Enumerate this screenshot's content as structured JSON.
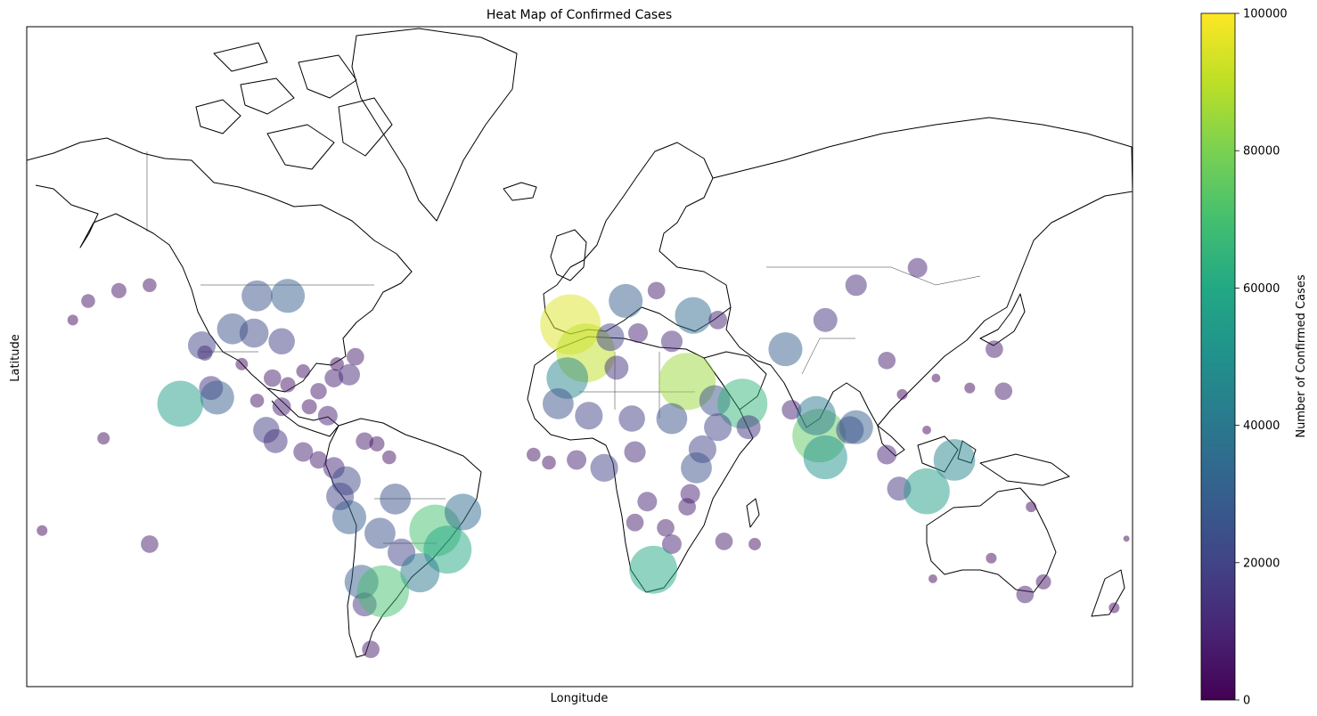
{
  "chart_data": {
    "type": "scatter",
    "title": "Heat Map of Confirmed Cases",
    "xlabel": "Longitude",
    "ylabel": "Latitude",
    "xlim": [
      -180,
      180
    ],
    "ylim": [
      -60,
      85
    ],
    "grid": false,
    "basemap": "coastlines and country borders",
    "marker_alpha": 0.5,
    "colorbar": {
      "label": "Number of Confirmed Cases",
      "colormap": "viridis",
      "range": [
        0,
        100000
      ],
      "ticks": [
        0,
        20000,
        40000,
        60000,
        80000,
        100000
      ],
      "tick_labels": [
        "0",
        "20000",
        "40000",
        "60000",
        "80000",
        "100000"
      ]
    },
    "points": [
      {
        "lon": -100,
        "lat": 40,
        "cases": 8000
      },
      {
        "lon": -95,
        "lat": 38,
        "cases": 6000
      },
      {
        "lon": -90,
        "lat": 42,
        "cases": 5000
      },
      {
        "lon": -85,
        "lat": 36,
        "cases": 7000
      },
      {
        "lon": -80,
        "lat": 40,
        "cases": 9000
      },
      {
        "lon": -75,
        "lat": 41,
        "cases": 12000
      },
      {
        "lon": -110,
        "lat": 44,
        "cases": 4000
      },
      {
        "lon": -120,
        "lat": 37,
        "cases": 15000
      },
      {
        "lon": -118,
        "lat": 34,
        "cases": 30000
      },
      {
        "lon": -122,
        "lat": 47,
        "cases": 6000
      },
      {
        "lon": -105,
        "lat": 33,
        "cases": 5000
      },
      {
        "lon": -97,
        "lat": 31,
        "cases": 9000
      },
      {
        "lon": -88,
        "lat": 31,
        "cases": 6000
      },
      {
        "lon": -82,
        "lat": 28,
        "cases": 10000
      },
      {
        "lon": -79,
        "lat": 44,
        "cases": 5000
      },
      {
        "lon": -73,
        "lat": 46,
        "cases": 8000
      },
      {
        "lon": -113,
        "lat": 53,
        "cases": 25000
      },
      {
        "lon": -106,
        "lat": 52,
        "cases": 22000
      },
      {
        "lon": -97,
        "lat": 50,
        "cases": 18000
      },
      {
        "lon": -123,
        "lat": 49,
        "cases": 20000
      },
      {
        "lon": -105,
        "lat": 60,
        "cases": 25000
      },
      {
        "lon": -95,
        "lat": 60,
        "cases": 30000
      },
      {
        "lon": -130,
        "lat": 32,
        "cases": 55000
      },
      {
        "lon": -140,
        "lat": 62,
        "cases": 5000
      },
      {
        "lon": -150,
        "lat": 61,
        "cases": 6000
      },
      {
        "lon": -160,
        "lat": 59,
        "cases": 5000
      },
      {
        "lon": -165,
        "lat": 55,
        "cases": 3000
      },
      {
        "lon": -155,
        "lat": 20,
        "cases": 4000
      },
      {
        "lon": -102,
        "lat": 23,
        "cases": 18000
      },
      {
        "lon": -99,
        "lat": 19,
        "cases": 15000
      },
      {
        "lon": -90,
        "lat": 15,
        "cases": 10000
      },
      {
        "lon": -85,
        "lat": 12,
        "cases": 8000
      },
      {
        "lon": -80,
        "lat": 9,
        "cases": 12000
      },
      {
        "lon": -76,
        "lat": 4,
        "cases": 22000
      },
      {
        "lon": -70,
        "lat": 19,
        "cases": 8000
      },
      {
        "lon": -66,
        "lat": 18,
        "cases": 6000
      },
      {
        "lon": -62,
        "lat": 13,
        "cases": 5000
      },
      {
        "lon": -78,
        "lat": -2,
        "cases": 20000
      },
      {
        "lon": -75,
        "lat": -10,
        "cases": 30000
      },
      {
        "lon": -65,
        "lat": -16,
        "cases": 25000
      },
      {
        "lon": -58,
        "lat": -23,
        "cases": 20000
      },
      {
        "lon": -47,
        "lat": -15,
        "cases": 70000
      },
      {
        "lon": -43,
        "lat": -22,
        "cases": 60000
      },
      {
        "lon": -38,
        "lat": -8,
        "cases": 35000
      },
      {
        "lon": -52,
        "lat": -30,
        "cases": 40000
      },
      {
        "lon": -60,
        "lat": -3,
        "cases": 25000
      },
      {
        "lon": -71,
        "lat": -33,
        "cases": 30000
      },
      {
        "lon": -70,
        "lat": -40,
        "cases": 15000
      },
      {
        "lon": -64,
        "lat": -36,
        "cases": 70000
      },
      {
        "lon": -68,
        "lat": -52,
        "cases": 8000
      },
      {
        "lon": -140,
        "lat": -20,
        "cases": 8000
      },
      {
        "lon": -175,
        "lat": -15,
        "cases": 3000
      },
      {
        "lon": -3,
        "lat": 54,
        "cases": 95000
      },
      {
        "lon": 2,
        "lat": 47,
        "cases": 90000
      },
      {
        "lon": -4,
        "lat": 40,
        "cases": 45000
      },
      {
        "lon": 12,
        "lat": 43,
        "cases": 15000
      },
      {
        "lon": 10,
        "lat": 51,
        "cases": 20000
      },
      {
        "lon": 19,
        "lat": 52,
        "cases": 10000
      },
      {
        "lon": 15,
        "lat": 59,
        "cases": 30000
      },
      {
        "lon": 25,
        "lat": 61,
        "cases": 8000
      },
      {
        "lon": 37,
        "lat": 56,
        "cases": 35000
      },
      {
        "lon": 30,
        "lat": 50,
        "cases": 12000
      },
      {
        "lon": 45,
        "lat": 55,
        "cases": 9000
      },
      {
        "lon": 35,
        "lat": 39,
        "cases": 85000
      },
      {
        "lon": 44,
        "lat": 33,
        "cases": 25000
      },
      {
        "lon": 53,
        "lat": 32,
        "cases": 65000
      },
      {
        "lon": 45,
        "lat": 24,
        "cases": 20000
      },
      {
        "lon": 55,
        "lat": 24,
        "cases": 15000
      },
      {
        "lon": 40,
        "lat": 16,
        "cases": 20000
      },
      {
        "lon": 67,
        "lat": 48,
        "cases": 30000
      },
      {
        "lon": 69,
        "lat": 30,
        "cases": 10000
      },
      {
        "lon": 78,
        "lat": 21,
        "cases": 75000
      },
      {
        "lon": 77,
        "lat": 28,
        "cases": 40000
      },
      {
        "lon": 80,
        "lat": 13,
        "cases": 50000
      },
      {
        "lon": 88,
        "lat": 23,
        "cases": 20000
      },
      {
        "lon": 90,
        "lat": 24,
        "cases": 30000
      },
      {
        "lon": 100,
        "lat": 14,
        "cases": 10000
      },
      {
        "lon": 104,
        "lat": 1,
        "cases": 15000
      },
      {
        "lon": 113,
        "lat": 0,
        "cases": 55000
      },
      {
        "lon": 122,
        "lat": 12,
        "cases": 45000
      },
      {
        "lon": 138,
        "lat": 36,
        "cases": 8000
      },
      {
        "lon": 127,
        "lat": 37,
        "cases": 3000
      },
      {
        "lon": 105,
        "lat": 35,
        "cases": 3000
      },
      {
        "lon": 116,
        "lat": 40,
        "cases": 2000
      },
      {
        "lon": 113,
        "lat": 23,
        "cases": 2000
      },
      {
        "lon": 100,
        "lat": 45,
        "cases": 8000
      },
      {
        "lon": 135,
        "lat": 48,
        "cases": 8000
      },
      {
        "lon": 90,
        "lat": 62,
        "cases": 12000
      },
      {
        "lon": 110,
        "lat": 65,
        "cases": 10000
      },
      {
        "lon": 80,
        "lat": 55,
        "cases": 15000
      },
      {
        "lon": 18,
        "lat": 15,
        "cases": 12000
      },
      {
        "lon": 8,
        "lat": 9,
        "cases": 20000
      },
      {
        "lon": -1,
        "lat": 12,
        "cases": 10000
      },
      {
        "lon": -10,
        "lat": 11,
        "cases": 5000
      },
      {
        "lon": -15,
        "lat": 14,
        "cases": 5000
      },
      {
        "lon": -7,
        "lat": 32,
        "cases": 25000
      },
      {
        "lon": 3,
        "lat": 28,
        "cases": 20000
      },
      {
        "lon": 17,
        "lat": 27,
        "cases": 18000
      },
      {
        "lon": 30,
        "lat": 27,
        "cases": 25000
      },
      {
        "lon": 38,
        "lat": 9,
        "cases": 25000
      },
      {
        "lon": 36,
        "lat": -1,
        "cases": 10000
      },
      {
        "lon": 35,
        "lat": -6,
        "cases": 8000
      },
      {
        "lon": 22,
        "lat": -4,
        "cases": 10000
      },
      {
        "lon": 18,
        "lat": -12,
        "cases": 8000
      },
      {
        "lon": 28,
        "lat": -14,
        "cases": 8000
      },
      {
        "lon": 30,
        "lat": -20,
        "cases": 10000
      },
      {
        "lon": 24,
        "lat": -29,
        "cases": 60000
      },
      {
        "lon": 47,
        "lat": -19,
        "cases": 8000
      },
      {
        "lon": 57,
        "lat": -20,
        "cases": 4000
      },
      {
        "lon": 134,
        "lat": -25,
        "cases": 3000
      },
      {
        "lon": 151,
        "lat": -33,
        "cases": 6000
      },
      {
        "lon": 145,
        "lat": -37,
        "cases": 8000
      },
      {
        "lon": 115,
        "lat": -32,
        "cases": 2000
      },
      {
        "lon": 174,
        "lat": -41,
        "cases": 3000
      },
      {
        "lon": 147,
        "lat": -6,
        "cases": 3000
      },
      {
        "lon": 178,
        "lat": -18,
        "cases": 1000
      }
    ]
  }
}
